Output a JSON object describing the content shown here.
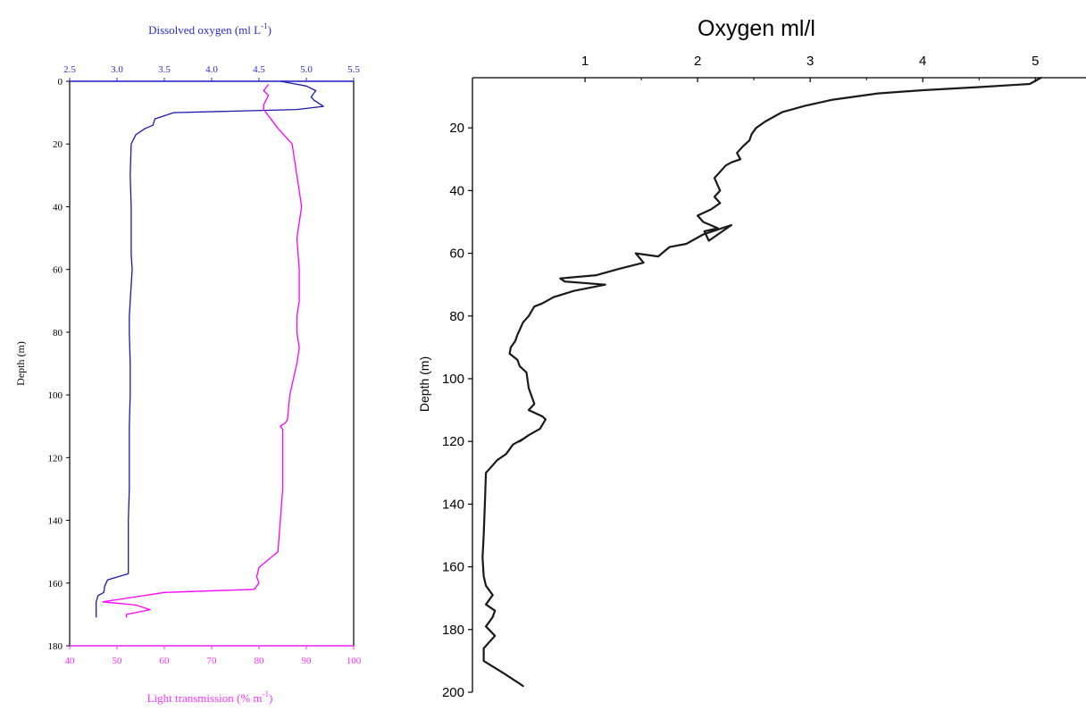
{
  "colors": {
    "oxygen_line": "#1a1aa6",
    "transmission_line": "#ff00ff",
    "oxygen_axis": "#2b2bd6",
    "transmission_axis": "#ff33ff",
    "profile_line": "#1a1a1a",
    "axis": "#000000"
  },
  "chart_data": [
    {
      "type": "line",
      "title": "",
      "ylabel": "Depth (m)",
      "yticks": [
        "0",
        "20",
        "40",
        "60",
        "80",
        "100",
        "120",
        "140",
        "160",
        "180"
      ],
      "ylim": [
        0,
        180
      ],
      "y_inverted": true,
      "grid": false,
      "top_axis": {
        "label_main": "Dissolved oxygen (ml L",
        "label_sup": "-1",
        "label_end": ")",
        "range": [
          2.5,
          5.5
        ],
        "ticks": [
          "2.5",
          "3.0",
          "3.5",
          "4.0",
          "4.5",
          "5.0",
          "5.5"
        ]
      },
      "bottom_axis": {
        "label_main": "Light transmission (% m",
        "label_sup": "-1",
        "label_end": ")",
        "range": [
          40,
          100
        ],
        "ticks": [
          "40",
          "50",
          "60",
          "70",
          "80",
          "90",
          "100"
        ]
      },
      "series": [
        {
          "axis": "top",
          "x": [
            4.73,
            5.0,
            5.1,
            5.05,
            5.08,
            5.18,
            4.9,
            3.6,
            3.4,
            3.38,
            3.3,
            3.2,
            3.15,
            3.14,
            3.15,
            3.15,
            3.15,
            3.16,
            3.14,
            3.13,
            3.13,
            3.14,
            3.14,
            3.13,
            3.13,
            3.13,
            3.12,
            3.12,
            3.12,
            2.9,
            2.87,
            2.86,
            2.8,
            2.78,
            2.78
          ],
          "depth": [
            0,
            1.5,
            3,
            5,
            6,
            8,
            9,
            10,
            12,
            14,
            15,
            17,
            20,
            30,
            40,
            50,
            55,
            60,
            70,
            75,
            80,
            90,
            100,
            110,
            120,
            130,
            140,
            150,
            157,
            159,
            161,
            163,
            164,
            166,
            171
          ]
        },
        {
          "axis": "bottom",
          "x": [
            82,
            81,
            82,
            81.5,
            81,
            81,
            84,
            87,
            88,
            88.5,
            89,
            88,
            88.5,
            88.5,
            88,
            88,
            88.5,
            88,
            86.5,
            86,
            85.5,
            84.5,
            85,
            85,
            85,
            84.5,
            84,
            80,
            79.5,
            80,
            79,
            60,
            47,
            54,
            57,
            52,
            52
          ],
          "depth": [
            1,
            3,
            4.5,
            6,
            7.5,
            9,
            15,
            20,
            30,
            35,
            40,
            50,
            60,
            70,
            75,
            80,
            85,
            90,
            100,
            108,
            109,
            110,
            111,
            120,
            130,
            140,
            150,
            155,
            158,
            160,
            162,
            163,
            166,
            167,
            168.5,
            170,
            171
          ]
        }
      ]
    },
    {
      "type": "line",
      "title": "Oxygen ml/l",
      "ylabel": "Depth (m)",
      "xticks": [
        "1",
        "2",
        "3",
        "4",
        "5"
      ],
      "yticks": [
        "20",
        "40",
        "60",
        "80",
        "100",
        "120",
        "140",
        "160",
        "180",
        "200"
      ],
      "xlim": [
        0,
        5.45
      ],
      "ylim": [
        4,
        200
      ],
      "y_inverted": true,
      "x_axis_position": "top",
      "grid": false,
      "series": [
        {
          "x": [
            5.05,
            4.95,
            4.5,
            4.0,
            3.6,
            3.2,
            2.95,
            2.75,
            2.6,
            2.52,
            2.48,
            2.46,
            2.4,
            2.35,
            2.38,
            2.3,
            2.25,
            2.15,
            2.2,
            2.15,
            2.2,
            2.12,
            2.0,
            2.05,
            2.18,
            2.06,
            2.1,
            2.3,
            2.05,
            1.9,
            1.75,
            1.65,
            1.45,
            1.52,
            1.3,
            1.1,
            0.78,
            0.82,
            1.18,
            0.9,
            0.72,
            0.62,
            0.55,
            0.5,
            0.45,
            0.4,
            0.38,
            0.34,
            0.33,
            0.4,
            0.42,
            0.48,
            0.5,
            0.55,
            0.5,
            0.62,
            0.65,
            0.6,
            0.5,
            0.42,
            0.46,
            0.36,
            0.3,
            0.22,
            0.17,
            0.12,
            0.11,
            0.1,
            0.09,
            0.1,
            0.12,
            0.18,
            0.12,
            0.2,
            0.18,
            0.12,
            0.2,
            0.1,
            0.1,
            0.28,
            0.45
          ],
          "y": [
            4,
            6,
            7,
            8,
            9,
            11,
            13,
            15,
            18,
            20,
            22,
            24,
            26,
            28,
            30,
            31,
            32,
            36,
            40,
            42,
            44,
            46,
            48,
            50,
            52,
            53,
            56,
            51,
            54,
            57,
            58,
            61,
            60,
            63,
            65,
            67,
            68,
            69,
            70,
            72,
            74,
            76,
            77,
            80,
            82,
            86,
            88,
            90,
            92,
            94,
            96,
            98,
            103,
            108,
            110,
            112,
            113,
            116,
            118,
            120,
            119,
            121,
            124,
            126,
            128,
            130,
            140,
            150,
            157,
            163,
            166,
            169,
            172,
            174,
            176,
            179,
            182,
            186,
            190,
            194,
            198
          ]
        }
      ]
    }
  ]
}
